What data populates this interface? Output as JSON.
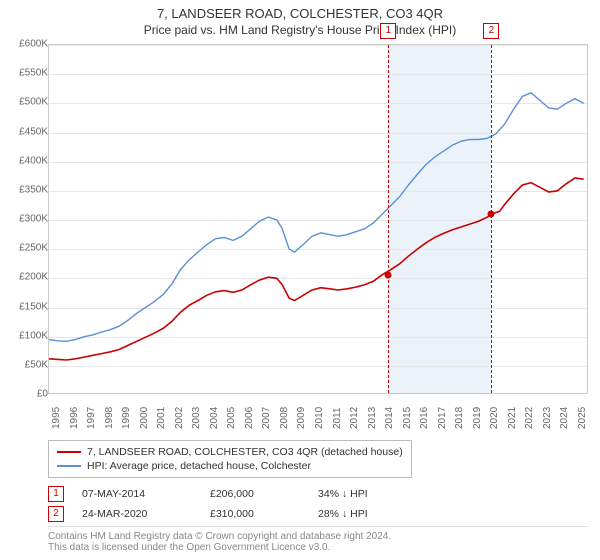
{
  "title": "7, LANDSEER ROAD, COLCHESTER, CO3 4QR",
  "subtitle": "Price paid vs. HM Land Registry's House Price Index (HPI)",
  "chart": {
    "type": "line",
    "background_color": "#ffffff",
    "grid_color": "#e6e6e6",
    "border_color": "#cccccc",
    "y": {
      "min": 0,
      "max": 600000,
      "step": 50000,
      "labels": [
        "£0",
        "£50K",
        "£100K",
        "£150K",
        "£200K",
        "£250K",
        "£300K",
        "£350K",
        "£400K",
        "£450K",
        "£500K",
        "£550K",
        "£600K"
      ],
      "label_fontsize": 10,
      "label_color": "#666666"
    },
    "x": {
      "min": 1995,
      "max": 2025.8,
      "ticks": [
        1995,
        1996,
        1997,
        1998,
        1999,
        2000,
        2001,
        2002,
        2003,
        2004,
        2005,
        2006,
        2007,
        2008,
        2009,
        2010,
        2011,
        2012,
        2013,
        2014,
        2015,
        2016,
        2017,
        2018,
        2019,
        2020,
        2021,
        2022,
        2023,
        2024,
        2025
      ],
      "label_fontsize": 10,
      "label_color": "#666666"
    },
    "shaded_band": {
      "from": 2014.35,
      "to": 2020.23,
      "color": "#dae8f5",
      "opacity": 0.55
    },
    "vlines": [
      {
        "x": 2014.35,
        "label": "1",
        "color": "#cc0000",
        "dash": true
      },
      {
        "x": 2020.23,
        "label": "2",
        "color": "#cc0000",
        "dash": true
      }
    ],
    "series": [
      {
        "name": "hpi",
        "color": "#5b8fd6",
        "line_width": 1.4,
        "legend": "HPI: Average price, detached house, Colchester",
        "data": [
          [
            1995,
            95000
          ],
          [
            1995.5,
            93000
          ],
          [
            1996,
            92000
          ],
          [
            1996.5,
            95000
          ],
          [
            1997,
            100000
          ],
          [
            1997.5,
            103000
          ],
          [
            1998,
            108000
          ],
          [
            1998.5,
            112000
          ],
          [
            1999,
            118000
          ],
          [
            1999.5,
            128000
          ],
          [
            2000,
            140000
          ],
          [
            2000.5,
            150000
          ],
          [
            2001,
            160000
          ],
          [
            2001.5,
            172000
          ],
          [
            2002,
            190000
          ],
          [
            2002.5,
            215000
          ],
          [
            2003,
            232000
          ],
          [
            2003.5,
            245000
          ],
          [
            2004,
            258000
          ],
          [
            2004.5,
            268000
          ],
          [
            2005,
            270000
          ],
          [
            2005.5,
            265000
          ],
          [
            2006,
            272000
          ],
          [
            2006.5,
            285000
          ],
          [
            2007,
            298000
          ],
          [
            2007.5,
            305000
          ],
          [
            2008,
            300000
          ],
          [
            2008.3,
            285000
          ],
          [
            2008.7,
            250000
          ],
          [
            2009,
            245000
          ],
          [
            2009.5,
            258000
          ],
          [
            2010,
            272000
          ],
          [
            2010.5,
            278000
          ],
          [
            2011,
            275000
          ],
          [
            2011.5,
            272000
          ],
          [
            2012,
            275000
          ],
          [
            2012.5,
            280000
          ],
          [
            2013,
            285000
          ],
          [
            2013.5,
            295000
          ],
          [
            2014,
            310000
          ],
          [
            2014.5,
            325000
          ],
          [
            2015,
            340000
          ],
          [
            2015.5,
            360000
          ],
          [
            2016,
            378000
          ],
          [
            2016.5,
            395000
          ],
          [
            2017,
            408000
          ],
          [
            2017.5,
            418000
          ],
          [
            2018,
            428000
          ],
          [
            2018.5,
            435000
          ],
          [
            2019,
            438000
          ],
          [
            2019.5,
            438000
          ],
          [
            2020,
            440000
          ],
          [
            2020.5,
            448000
          ],
          [
            2021,
            465000
          ],
          [
            2021.5,
            490000
          ],
          [
            2022,
            512000
          ],
          [
            2022.5,
            518000
          ],
          [
            2023,
            505000
          ],
          [
            2023.5,
            492000
          ],
          [
            2024,
            490000
          ],
          [
            2024.5,
            500000
          ],
          [
            2025,
            508000
          ],
          [
            2025.5,
            500000
          ]
        ]
      },
      {
        "name": "subject",
        "color": "#cc0000",
        "line_width": 1.6,
        "legend": "7, LANDSEER ROAD, COLCHESTER, CO3 4QR (detached house)",
        "data": [
          [
            1995,
            62000
          ],
          [
            1995.5,
            61000
          ],
          [
            1996,
            60000
          ],
          [
            1996.5,
            62000
          ],
          [
            1997,
            65000
          ],
          [
            1997.5,
            68000
          ],
          [
            1998,
            71000
          ],
          [
            1998.5,
            74000
          ],
          [
            1999,
            78000
          ],
          [
            1999.5,
            85000
          ],
          [
            2000,
            92000
          ],
          [
            2000.5,
            99000
          ],
          [
            2001,
            106000
          ],
          [
            2001.5,
            114000
          ],
          [
            2002,
            126000
          ],
          [
            2002.5,
            142000
          ],
          [
            2003,
            154000
          ],
          [
            2003.5,
            162000
          ],
          [
            2004,
            171000
          ],
          [
            2004.5,
            177000
          ],
          [
            2005,
            179000
          ],
          [
            2005.5,
            176000
          ],
          [
            2006,
            180000
          ],
          [
            2006.5,
            189000
          ],
          [
            2007,
            197000
          ],
          [
            2007.5,
            202000
          ],
          [
            2008,
            200000
          ],
          [
            2008.3,
            189000
          ],
          [
            2008.7,
            166000
          ],
          [
            2009,
            162000
          ],
          [
            2009.5,
            171000
          ],
          [
            2010,
            180000
          ],
          [
            2010.5,
            184000
          ],
          [
            2011,
            182000
          ],
          [
            2011.5,
            180000
          ],
          [
            2012,
            182000
          ],
          [
            2012.5,
            185000
          ],
          [
            2013,
            189000
          ],
          [
            2013.5,
            195000
          ],
          [
            2014,
            206000
          ],
          [
            2014.5,
            215000
          ],
          [
            2015,
            225000
          ],
          [
            2015.5,
            238000
          ],
          [
            2016,
            250000
          ],
          [
            2016.5,
            261000
          ],
          [
            2017,
            270000
          ],
          [
            2017.5,
            277000
          ],
          [
            2018,
            283000
          ],
          [
            2018.5,
            288000
          ],
          [
            2019,
            293000
          ],
          [
            2019.5,
            298000
          ],
          [
            2020,
            305000
          ],
          [
            2020.23,
            310000
          ],
          [
            2020.7,
            315000
          ],
          [
            2021,
            327000
          ],
          [
            2021.5,
            345000
          ],
          [
            2022,
            360000
          ],
          [
            2022.5,
            364000
          ],
          [
            2023,
            356000
          ],
          [
            2023.5,
            348000
          ],
          [
            2024,
            350000
          ],
          [
            2024.5,
            362000
          ],
          [
            2025,
            372000
          ],
          [
            2025.5,
            370000
          ]
        ]
      }
    ],
    "markers": [
      {
        "x": 2014.35,
        "y": 206000,
        "color": "#cc0000"
      },
      {
        "x": 2020.23,
        "y": 310000,
        "color": "#cc0000"
      }
    ]
  },
  "sales": [
    {
      "n": "1",
      "date": "07-MAY-2014",
      "price": "£206,000",
      "delta": "34%",
      "dir": "down",
      "ref": "HPI"
    },
    {
      "n": "2",
      "date": "24-MAR-2020",
      "price": "£310,000",
      "delta": "28%",
      "dir": "down",
      "ref": "HPI"
    }
  ],
  "footer": {
    "line1": "Contains HM Land Registry data © Crown copyright and database right 2024.",
    "line2": "This data is licensed under the Open Government Licence v3.0."
  }
}
